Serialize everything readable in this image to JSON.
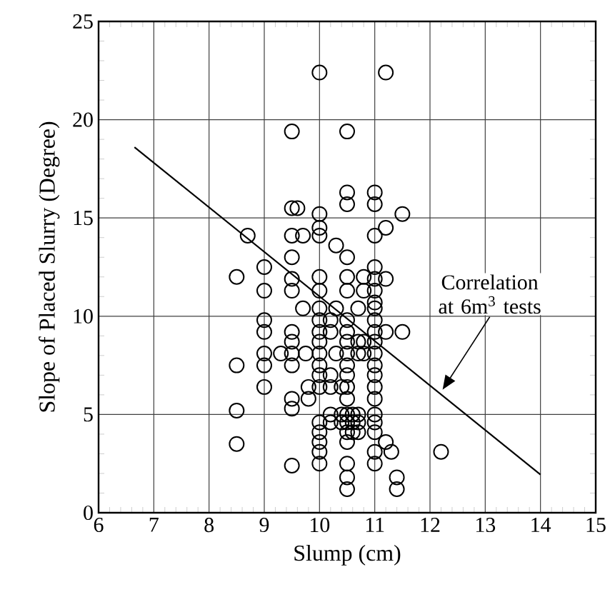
{
  "chart_data": {
    "type": "scatter",
    "xlabel": "Slump (cm)",
    "ylabel": "Slope of Placed Slurry (Degree)",
    "xlim": [
      6,
      15
    ],
    "ylim": [
      0,
      25
    ],
    "xticks": [
      6,
      7,
      8,
      9,
      10,
      11,
      12,
      13,
      14,
      15
    ],
    "yticks": [
      0,
      5,
      10,
      15,
      20,
      25
    ],
    "grid": true,
    "marker": "circle",
    "annotations": [
      "Correlation at 6m$^{3}$ tests"
    ],
    "series": [
      {
        "color": "#000000",
        "x": [
          10,
          11.2,
          9.5,
          10.5,
          10.5,
          10.5,
          11,
          11,
          11.5,
          9.5,
          9.6,
          10,
          10,
          10,
          9.5,
          9.7,
          11.2,
          11,
          10.3,
          10.5,
          11,
          9.5,
          9,
          8.7,
          8.5,
          9,
          9,
          9,
          9,
          9,
          9,
          8.5,
          8.5,
          8.5,
          9.5,
          9.5,
          9.5,
          9.8,
          9.8,
          9.5,
          9.5,
          9.5,
          9.5,
          9.3,
          9.75,
          9.7,
          9.5,
          9.5,
          12.2,
          11.4,
          11.4,
          10.5,
          10.5,
          10.5,
          11.3,
          11.2,
          11.5,
          11.2,
          11.2,
          11,
          11,
          11,
          11,
          11,
          11,
          11,
          11,
          11,
          11,
          11,
          11,
          11,
          11,
          11,
          11,
          11,
          10,
          10,
          10,
          10,
          10,
          10,
          10,
          10,
          10,
          10,
          10,
          10,
          10,
          10,
          10,
          10.5,
          10.5,
          10.5,
          10.5,
          10.5,
          10.5,
          10.5,
          10.5,
          10.5,
          10.5,
          10.5,
          10.5,
          10.5,
          10.5,
          10.2,
          10.2,
          10.2,
          10.2,
          10.2,
          10.2,
          10.3,
          10.3,
          10.7,
          10.7,
          10.7,
          10.7,
          10.7,
          10.7,
          10.8,
          10.8,
          10.8,
          10.8,
          10.4,
          10.4,
          10.4,
          10.6,
          10.6,
          10.6
        ],
        "values": [
          22.4,
          22.4,
          19.4,
          19.4,
          16.3,
          15.7,
          16.3,
          15.7,
          15.2,
          15.5,
          15.5,
          15.2,
          14.5,
          14.1,
          14.1,
          14.1,
          14.5,
          14.1,
          13.6,
          13.0,
          12.5,
          13.0,
          12.5,
          14.1,
          12.0,
          11.3,
          9.8,
          9.2,
          8.1,
          7.5,
          6.4,
          7.5,
          5.2,
          3.5,
          2.4,
          5.3,
          5.8,
          5.8,
          6.4,
          9.2,
          8.7,
          8.1,
          7.5,
          8.1,
          8.1,
          10.4,
          11.3,
          11.9,
          3.1,
          1.8,
          1.2,
          2.5,
          1.8,
          1.2,
          3.1,
          3.6,
          9.2,
          9.2,
          11.9,
          11.9,
          11.3,
          10.7,
          10.4,
          9.8,
          9.2,
          8.7,
          8.1,
          7.5,
          7.0,
          6.4,
          5.8,
          5.0,
          4.6,
          4.1,
          3.1,
          2.5,
          12.0,
          11.3,
          10.4,
          9.8,
          9.2,
          8.7,
          8.1,
          7.5,
          7.0,
          6.4,
          4.6,
          4.1,
          3.6,
          3.1,
          2.5,
          12.0,
          11.3,
          9.8,
          9.2,
          8.7,
          8.1,
          7.5,
          7.0,
          6.4,
          5.8,
          5.0,
          4.6,
          4.1,
          3.6,
          9.8,
          9.2,
          7.0,
          6.4,
          5.0,
          4.6,
          10.4,
          8.1,
          10.4,
          8.7,
          8.1,
          5.0,
          4.6,
          4.1,
          12.0,
          11.3,
          8.7,
          8.1,
          6.4,
          5.0,
          4.6,
          5.0,
          4.6,
          4.1
        ]
      },
      {
        "type": "line",
        "color": "#000000",
        "marker": "none",
        "x": [
          6.65,
          14
        ],
        "values": [
          18.6,
          1.94
        ]
      }
    ]
  }
}
